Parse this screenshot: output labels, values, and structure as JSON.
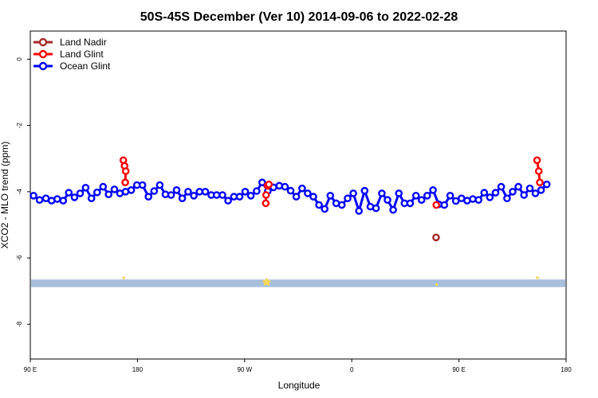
{
  "chart_data": {
    "type": "line",
    "title": "50S-45S December (Ver 10)   2014-09-06 to 2022-02-28",
    "xlabel": "Longitude",
    "ylabel": "XCO2 - MLO trend (ppm)",
    "xlim": [
      90,
      450
    ],
    "ylim": [
      -9.05,
      0.85
    ],
    "x_ticks": [
      {
        "value": 90,
        "label": "90 E"
      },
      {
        "value": 162,
        "label": "180"
      },
      {
        "value": 234,
        "label": "90 W"
      },
      {
        "value": 306,
        "label": "0"
      },
      {
        "value": 378,
        "label": "90 E"
      },
      {
        "value": 450,
        "label": "180"
      }
    ],
    "y_ticks": [
      {
        "value": 0,
        "label": "0"
      },
      {
        "value": -2,
        "label": "-2"
      },
      {
        "value": -4,
        "label": "-4"
      },
      {
        "value": -6,
        "label": "-6"
      },
      {
        "value": -8,
        "label": "-8"
      }
    ],
    "legend_position": "top-left",
    "series": [
      {
        "name": "Land Nadir",
        "color": "#a52a2a",
        "points": [
          [
            362.6,
            -5.38
          ]
        ]
      },
      {
        "name": "Land Glint",
        "color": "#ff0000",
        "segments": [
          [
            [
              152.5,
              -3.05
            ],
            [
              153.3,
              -3.22
            ],
            [
              154.1,
              -3.38
            ],
            [
              153.8,
              -3.72
            ]
          ],
          [
            [
              248.2,
              -4.35
            ],
            [
              248.4,
              -4.1
            ],
            [
              249.4,
              -3.82
            ],
            [
              250.3,
              -3.78
            ]
          ],
          [
            [
              362.8,
              -4.4
            ]
          ],
          [
            [
              430.5,
              -3.05
            ],
            [
              431.6,
              -3.38
            ],
            [
              432.3,
              -3.72
            ]
          ]
        ]
      },
      {
        "name": "Ocean Glint",
        "color": "#0000ff",
        "points": [
          [
            92.2,
            -4.12
          ],
          [
            96.2,
            -4.25
          ],
          [
            100.5,
            -4.2
          ],
          [
            104.3,
            -4.27
          ],
          [
            108.1,
            -4.22
          ],
          [
            112.1,
            -4.27
          ],
          [
            115.9,
            -4.03
          ],
          [
            119.7,
            -4.17
          ],
          [
            123.5,
            -4.05
          ],
          [
            127.2,
            -3.88
          ],
          [
            131.1,
            -4.2
          ],
          [
            134.9,
            -4.02
          ],
          [
            138.9,
            -3.85
          ],
          [
            142.6,
            -4.08
          ],
          [
            146.5,
            -3.93
          ],
          [
            150.2,
            -4.05
          ],
          [
            154.0,
            -4.0
          ],
          [
            157.8,
            -3.95
          ],
          [
            161.6,
            -3.8
          ],
          [
            165.4,
            -3.8
          ],
          [
            169.4,
            -4.15
          ],
          [
            173.2,
            -3.98
          ],
          [
            177.0,
            -3.8
          ],
          [
            180.8,
            -4.08
          ],
          [
            184.6,
            -4.1
          ],
          [
            188.3,
            -3.95
          ],
          [
            192.1,
            -4.2
          ],
          [
            196.0,
            -4.0
          ],
          [
            199.9,
            -4.12
          ],
          [
            203.7,
            -4.0
          ],
          [
            207.6,
            -4.0
          ],
          [
            211.6,
            -4.1
          ],
          [
            215.2,
            -4.1
          ],
          [
            219.1,
            -4.1
          ],
          [
            222.9,
            -4.27
          ],
          [
            226.8,
            -4.15
          ],
          [
            230.6,
            -4.15
          ],
          [
            234.4,
            -4.0
          ],
          [
            238.2,
            -4.12
          ],
          [
            242.1,
            -3.98
          ],
          [
            245.8,
            -3.72
          ],
          [
            249.6,
            -3.98
          ],
          [
            253.4,
            -3.87
          ],
          [
            257.3,
            -3.82
          ],
          [
            261.1,
            -3.85
          ],
          [
            264.9,
            -3.97
          ],
          [
            268.7,
            -4.15
          ],
          [
            272.6,
            -3.9
          ],
          [
            276.4,
            -4.05
          ],
          [
            280.2,
            -4.15
          ],
          [
            284.0,
            -4.4
          ],
          [
            287.8,
            -4.52
          ],
          [
            291.6,
            -4.12
          ],
          [
            295.5,
            -4.35
          ],
          [
            299.3,
            -4.4
          ],
          [
            303.2,
            -4.2
          ],
          [
            307.0,
            -4.05
          ],
          [
            310.8,
            -4.58
          ],
          [
            314.6,
            -3.97
          ],
          [
            318.5,
            -4.45
          ],
          [
            322.3,
            -4.5
          ],
          [
            326.2,
            -4.05
          ],
          [
            330.0,
            -4.25
          ],
          [
            333.8,
            -4.55
          ],
          [
            337.6,
            -4.05
          ],
          [
            341.4,
            -4.35
          ],
          [
            345.2,
            -4.35
          ],
          [
            349.1,
            -4.12
          ],
          [
            352.9,
            -4.25
          ],
          [
            356.7,
            -4.12
          ],
          [
            360.6,
            -3.95
          ],
          [
            364.4,
            -4.38
          ],
          [
            368.2,
            -4.4
          ],
          [
            372.1,
            -4.12
          ],
          [
            375.9,
            -4.28
          ],
          [
            379.7,
            -4.2
          ],
          [
            383.5,
            -4.27
          ],
          [
            387.3,
            -4.22
          ],
          [
            391.2,
            -4.25
          ],
          [
            395.0,
            -4.03
          ],
          [
            398.8,
            -4.17
          ],
          [
            402.6,
            -4.03
          ],
          [
            406.4,
            -3.85
          ],
          [
            410.3,
            -4.2
          ],
          [
            414.1,
            -4.0
          ],
          [
            417.9,
            -3.85
          ],
          [
            421.7,
            -4.1
          ],
          [
            425.6,
            -3.9
          ],
          [
            429.4,
            -4.05
          ],
          [
            433.2,
            -3.95
          ],
          [
            437.0,
            -3.78
          ]
        ]
      }
    ],
    "band": {
      "y_top": -6.65,
      "y_bottom": -6.88,
      "color": "#a8bfdc"
    },
    "band_markers": [
      {
        "x": 152.7,
        "y": -6.6,
        "color": "#f5d65a"
      },
      {
        "x": 248.8,
        "y": -6.73,
        "color": "#f5d65a"
      },
      {
        "x": 363.0,
        "y": -6.8,
        "color": "#f5d65a"
      },
      {
        "x": 430.7,
        "y": -6.6,
        "color": "#f5d65a"
      }
    ]
  }
}
